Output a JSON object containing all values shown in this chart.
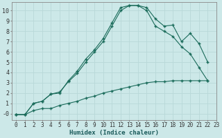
{
  "xlabel": "Humidex (Indice chaleur)",
  "bg_color": "#cce8e8",
  "grid_color": "#b8d8d8",
  "line_color": "#1a6b5a",
  "xlim": [
    -0.5,
    23
  ],
  "ylim": [
    -0.6,
    10.8
  ],
  "xticks": [
    0,
    1,
    2,
    3,
    4,
    5,
    6,
    7,
    8,
    9,
    10,
    11,
    12,
    13,
    14,
    15,
    16,
    17,
    18,
    19,
    20,
    21,
    22,
    23
  ],
  "yticks": [
    0,
    1,
    2,
    3,
    4,
    5,
    6,
    7,
    8,
    9,
    10
  ],
  "ytick_labels": [
    "-0",
    "1",
    "2",
    "3",
    "4",
    "5",
    "6",
    "7",
    "8",
    "9",
    "10"
  ],
  "series1_x": [
    0,
    1,
    2,
    3,
    4,
    5,
    6,
    7,
    8,
    9,
    10,
    11,
    12,
    13,
    14,
    15,
    16,
    17,
    18,
    19,
    20,
    21,
    22
  ],
  "series1_y": [
    -0.1,
    -0.1,
    1.0,
    1.2,
    1.9,
    2.0,
    3.2,
    4.1,
    5.3,
    6.2,
    7.3,
    8.8,
    10.3,
    10.5,
    10.5,
    10.3,
    9.2,
    8.5,
    8.6,
    7.0,
    7.8,
    6.8,
    5.0
  ],
  "series2_x": [
    0,
    1,
    2,
    3,
    4,
    5,
    6,
    7,
    8,
    9,
    10,
    11,
    12,
    13,
    14,
    15,
    16,
    17,
    18,
    19,
    20,
    21,
    22
  ],
  "series2_y": [
    -0.1,
    -0.1,
    1.0,
    1.2,
    1.9,
    2.1,
    3.1,
    3.9,
    5.0,
    6.0,
    7.0,
    8.5,
    10.0,
    10.5,
    10.5,
    10.0,
    8.5,
    8.0,
    7.5,
    6.5,
    5.8,
    4.5,
    3.2
  ],
  "series3_x": [
    0,
    1,
    2,
    3,
    4,
    5,
    6,
    7,
    8,
    9,
    10,
    11,
    12,
    13,
    14,
    15,
    16,
    17,
    18,
    19,
    20,
    21,
    22
  ],
  "series3_y": [
    -0.1,
    -0.1,
    0.3,
    0.5,
    0.5,
    0.8,
    1.0,
    1.2,
    1.5,
    1.7,
    2.0,
    2.2,
    2.4,
    2.6,
    2.8,
    3.0,
    3.1,
    3.1,
    3.2,
    3.2,
    3.2,
    3.2,
    3.2
  ],
  "xlabel_fontsize": 6.5,
  "xlabel_color": "#1a5a5a",
  "tick_fontsize": 5.5
}
